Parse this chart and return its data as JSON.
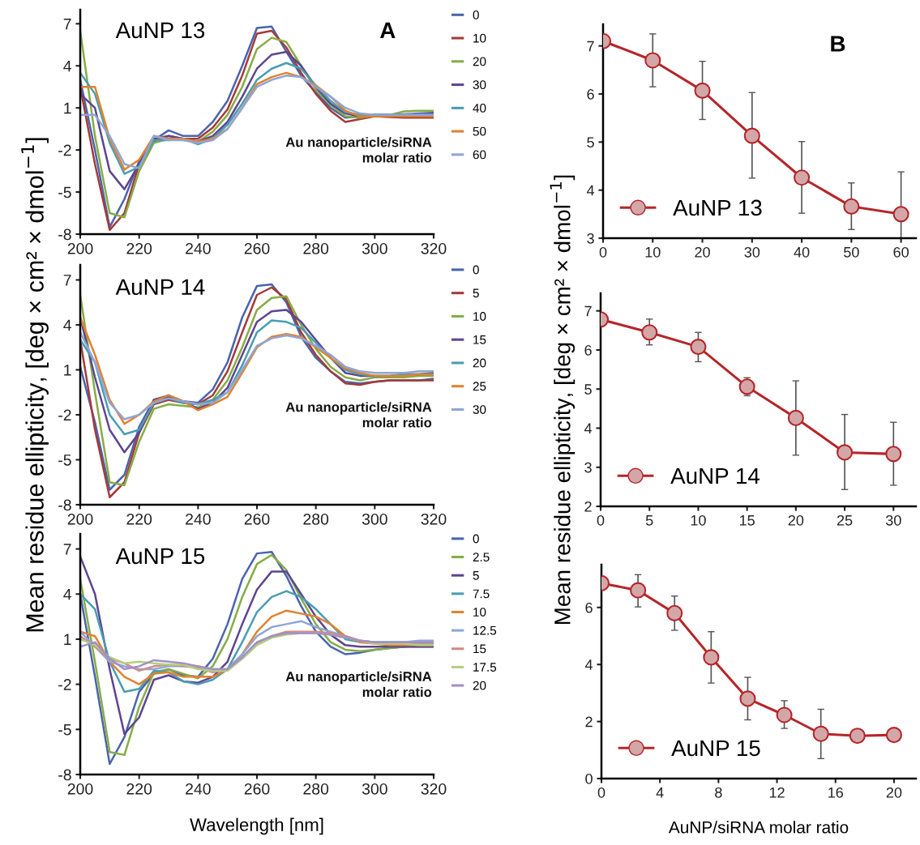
{
  "chart_data": [
    {
      "type": "line",
      "title": "AuNP 13",
      "annotations": [
        "A",
        "Au nanoparticle/siRNA\nmolar ratio"
      ],
      "legend": "right",
      "xlim": [
        200,
        320
      ],
      "xticks": [
        200,
        220,
        240,
        260,
        280,
        300,
        320
      ],
      "ylim": [
        -8,
        8
      ],
      "yticks": [
        -8,
        -5,
        -2,
        1,
        4,
        7
      ],
      "x": [
        200,
        205,
        210,
        215,
        220,
        225,
        230,
        235,
        240,
        245,
        250,
        255,
        260,
        265,
        270,
        275,
        280,
        285,
        290,
        295,
        300,
        305,
        310,
        315,
        320
      ],
      "series": [
        {
          "name": "0",
          "color": "#4a64ad",
          "values": [
            3.0,
            -2.0,
            -7.5,
            -5.5,
            -2.8,
            -1.3,
            -0.6,
            -1.0,
            -1.0,
            0.0,
            1.5,
            4.0,
            6.7,
            6.8,
            5.0,
            3.3,
            2.1,
            1.0,
            0.3,
            0.4,
            0.5,
            0.5,
            0.55,
            0.6,
            0.65
          ]
        },
        {
          "name": "10",
          "color": "#a33b3a",
          "values": [
            2.5,
            -3.0,
            -7.7,
            -6.5,
            -3.0,
            -1.4,
            -1.0,
            -1.2,
            -1.2,
            -0.4,
            0.9,
            3.3,
            6.3,
            6.5,
            5.3,
            3.5,
            2.0,
            0.8,
            0.0,
            0.2,
            0.4,
            0.35,
            0.3,
            0.3,
            0.3
          ]
        },
        {
          "name": "20",
          "color": "#86ad45",
          "values": [
            6.5,
            -1.0,
            -6.5,
            -6.8,
            -3.5,
            -1.5,
            -1.2,
            -1.3,
            -1.4,
            -0.7,
            0.5,
            2.5,
            5.2,
            6.0,
            5.7,
            4.0,
            2.3,
            1.2,
            0.4,
            0.3,
            0.45,
            0.5,
            0.75,
            0.8,
            0.8
          ]
        },
        {
          "name": "30",
          "color": "#5e4590",
          "values": [
            2.0,
            1.0,
            -3.5,
            -4.8,
            -3.0,
            -1.2,
            -1.0,
            -1.2,
            -1.4,
            -1.0,
            0.0,
            1.8,
            3.8,
            4.8,
            5.0,
            4.0,
            2.5,
            1.3,
            0.6,
            0.4,
            0.5,
            0.5,
            0.5,
            0.5,
            0.6
          ]
        },
        {
          "name": "40",
          "color": "#4a9db3",
          "values": [
            3.5,
            2.0,
            -1.5,
            -3.7,
            -3.2,
            -1.3,
            -1.3,
            -1.2,
            -1.6,
            -1.2,
            -0.2,
            1.3,
            3.0,
            3.8,
            4.2,
            3.8,
            2.6,
            1.5,
            0.7,
            0.5,
            0.5,
            0.5,
            0.5,
            0.5,
            0.5
          ]
        },
        {
          "name": "50",
          "color": "#e0832f",
          "values": [
            2.5,
            2.5,
            -1.2,
            -3.4,
            -2.7,
            -1.0,
            -1.2,
            -1.2,
            -1.4,
            -1.2,
            -0.5,
            1.0,
            2.7,
            3.2,
            3.5,
            3.2,
            2.6,
            1.8,
            0.8,
            0.4,
            0.4,
            0.4,
            0.4,
            0.4,
            0.4
          ]
        },
        {
          "name": "60",
          "color": "#8fa6d6",
          "values": [
            0.5,
            0.5,
            -1.0,
            -3.0,
            -3.3,
            -1.0,
            -1.3,
            -1.3,
            -1.5,
            -1.3,
            -0.5,
            1.0,
            2.5,
            3.0,
            3.3,
            3.2,
            2.5,
            1.8,
            1.0,
            0.6,
            0.5,
            0.5,
            0.5,
            0.5,
            0.5
          ]
        }
      ]
    },
    {
      "type": "line",
      "annotations": [
        "B"
      ],
      "legend": "bottom left",
      "marker": "circle",
      "xlim": [
        0,
        63
      ],
      "xticks": [
        0,
        10,
        20,
        30,
        40,
        50,
        60
      ],
      "ylim": [
        3,
        7.45
      ],
      "yticks": [
        3,
        4,
        5,
        6,
        7
      ],
      "x": [
        0,
        10,
        20,
        30,
        40,
        50,
        60
      ],
      "series": [
        {
          "name": "AuNP 13",
          "color": "#b5262a",
          "values": [
            7.1,
            6.7,
            6.07,
            5.13,
            4.26,
            3.66,
            3.5
          ],
          "errors": [
            null,
            [
              6.15,
              7.25
            ],
            [
              5.47,
              6.68
            ],
            [
              4.25,
              6.03
            ],
            [
              3.52,
              5.01
            ],
            [
              3.18,
              4.15
            ],
            [
              3.0,
              4.38
            ]
          ]
        }
      ]
    },
    {
      "type": "line",
      "title": "AuNP 14",
      "ylabel": "Mean residue ellipticity, [deg × cm² × dmol$^{−1}$]",
      "annotations": [
        "Au nanoparticle/siRNA\nmolar ratio"
      ],
      "legend": "right",
      "xlim": [
        200,
        320
      ],
      "xticks": [
        200,
        220,
        240,
        260,
        280,
        300,
        320
      ],
      "ylim": [
        -8,
        8
      ],
      "yticks": [
        -8,
        -5,
        -2,
        1,
        4,
        7
      ],
      "x": [
        200,
        205,
        210,
        215,
        220,
        225,
        230,
        235,
        240,
        245,
        250,
        255,
        260,
        265,
        270,
        275,
        280,
        285,
        290,
        295,
        300,
        305,
        310,
        315,
        320
      ],
      "series": [
        {
          "name": "0",
          "color": "#4a64ad",
          "values": [
            1.2,
            -2.5,
            -7.0,
            -6.0,
            -2.8,
            -1.0,
            -0.7,
            -1.1,
            -1.2,
            -0.3,
            1.5,
            4.5,
            6.6,
            6.7,
            5.5,
            3.2,
            1.8,
            0.9,
            0.2,
            0.1,
            0.2,
            0.3,
            0.3,
            0.3,
            0.4
          ]
        },
        {
          "name": "5",
          "color": "#a33b3a",
          "values": [
            3.0,
            -3.0,
            -7.5,
            -6.5,
            -3.2,
            -1.3,
            -1.0,
            -1.2,
            -1.3,
            -0.7,
            0.9,
            3.5,
            6.0,
            6.5,
            5.7,
            3.5,
            2.0,
            0.9,
            0.1,
            0.0,
            0.2,
            0.3,
            0.3,
            0.3,
            0.3
          ]
        },
        {
          "name": "10",
          "color": "#86ad45",
          "values": [
            6.0,
            -0.5,
            -6.5,
            -6.7,
            -3.8,
            -1.6,
            -1.3,
            -1.4,
            -1.5,
            -1.0,
            0.3,
            2.5,
            5.0,
            5.8,
            5.9,
            4.0,
            2.4,
            1.2,
            0.5,
            0.3,
            0.5,
            0.5,
            0.5,
            0.6,
            0.6
          ]
        },
        {
          "name": "15",
          "color": "#5e4590",
          "values": [
            4.5,
            0.5,
            -3.0,
            -4.5,
            -3.2,
            -1.0,
            -0.8,
            -1.1,
            -1.6,
            -1.2,
            -0.2,
            2.0,
            4.2,
            4.9,
            5.0,
            4.2,
            3.0,
            1.8,
            0.8,
            0.6,
            0.6,
            0.6,
            0.7,
            0.7,
            0.8
          ]
        },
        {
          "name": "20",
          "color": "#4a9db3",
          "values": [
            3.0,
            1.5,
            -2.0,
            -3.3,
            -3.0,
            -1.2,
            -0.9,
            -1.2,
            -1.3,
            -1.0,
            -0.5,
            1.3,
            3.5,
            4.3,
            4.2,
            3.8,
            2.8,
            1.8,
            1.0,
            0.7,
            0.6,
            0.6,
            0.7,
            0.7,
            0.7
          ]
        },
        {
          "name": "25",
          "color": "#e0832f",
          "values": [
            4.5,
            2.0,
            -1.0,
            -2.6,
            -2.0,
            -1.1,
            -0.7,
            -1.1,
            -1.7,
            -1.3,
            -0.8,
            0.8,
            2.5,
            3.2,
            3.4,
            3.2,
            2.5,
            1.8,
            1.1,
            0.8,
            0.6,
            0.6,
            0.6,
            0.7,
            0.7
          ]
        },
        {
          "name": "30",
          "color": "#8fa6d6",
          "values": [
            3.5,
            1.5,
            -1.2,
            -2.3,
            -2.0,
            -1.2,
            -0.9,
            -1.1,
            -1.3,
            -1.2,
            -0.5,
            1.0,
            2.6,
            3.1,
            3.3,
            3.1,
            2.6,
            2.0,
            1.2,
            0.9,
            0.8,
            0.8,
            0.8,
            0.9,
            0.9
          ]
        }
      ]
    },
    {
      "type": "line",
      "ylabel": "Mean residue ellipticity, [deg × cm² × dmol$^{−1}$]",
      "legend": "bottom left",
      "marker": "circle",
      "xlim": [
        0,
        32.3
      ],
      "xticks": [
        0,
        5,
        10,
        15,
        20,
        25,
        30
      ],
      "ylim": [
        2,
        7.45
      ],
      "yticks": [
        2,
        3,
        4,
        5,
        6,
        7
      ],
      "x": [
        0,
        5,
        10,
        15,
        20,
        25,
        30
      ],
      "series": [
        {
          "name": "AuNP 14",
          "color": "#b5262a",
          "values": [
            6.78,
            6.45,
            6.08,
            5.06,
            4.26,
            3.38,
            3.34
          ],
          "errors": [
            null,
            [
              6.13,
              6.79
            ],
            [
              5.7,
              6.45
            ],
            [
              4.83,
              5.29
            ],
            [
              3.31,
              5.21
            ],
            [
              2.43,
              4.35
            ],
            [
              2.54,
              4.15
            ]
          ]
        }
      ]
    },
    {
      "type": "line",
      "title": "AuNP 15",
      "xlabel": "Wavelength [nm]",
      "annotations": [
        "Au nanoparticle/siRNA\nmolar ratio"
      ],
      "legend": "right",
      "xlim": [
        200,
        320
      ],
      "xticks": [
        200,
        220,
        240,
        260,
        280,
        300,
        320
      ],
      "ylim": [
        -8,
        8
      ],
      "yticks": [
        -8,
        -5,
        -2,
        1,
        4,
        7
      ],
      "x": [
        200,
        205,
        210,
        215,
        220,
        225,
        230,
        235,
        240,
        245,
        250,
        255,
        260,
        265,
        270,
        275,
        280,
        285,
        290,
        295,
        300,
        305,
        310,
        315,
        320
      ],
      "series": [
        {
          "name": "0",
          "color": "#4a64ad",
          "values": [
            4.0,
            -1.5,
            -7.3,
            -5.5,
            -2.5,
            -1.3,
            -1.0,
            -1.4,
            -1.5,
            -0.3,
            2.0,
            5.0,
            6.7,
            6.8,
            5.2,
            3.2,
            1.5,
            0.5,
            0.0,
            0.1,
            0.3,
            0.4,
            0.5,
            0.6,
            0.6
          ]
        },
        {
          "name": "2.5",
          "color": "#86ad45",
          "values": [
            5.0,
            -0.5,
            -6.5,
            -6.7,
            -3.5,
            -1.2,
            -1.0,
            -1.3,
            -1.6,
            -0.8,
            1.0,
            3.8,
            6.0,
            6.6,
            5.6,
            3.7,
            2.0,
            0.8,
            0.3,
            0.2,
            0.3,
            0.4,
            0.5,
            0.5,
            0.5
          ]
        },
        {
          "name": "5",
          "color": "#5e4590",
          "values": [
            6.5,
            4.0,
            -1.0,
            -5.3,
            -4.2,
            -1.7,
            -1.4,
            -1.8,
            -1.9,
            -1.5,
            -0.5,
            2.0,
            4.3,
            5.5,
            5.5,
            4.0,
            2.5,
            1.3,
            0.6,
            0.5,
            0.5,
            0.5,
            0.5,
            0.5,
            0.5
          ]
        },
        {
          "name": "7.5",
          "color": "#4a9db3",
          "values": [
            4.0,
            3.0,
            -0.5,
            -2.5,
            -2.3,
            -1.1,
            -1.2,
            -1.8,
            -2.0,
            -1.7,
            -1.0,
            0.8,
            2.8,
            3.8,
            4.2,
            3.8,
            3.0,
            2.0,
            1.0,
            0.8,
            0.8,
            0.8,
            0.8,
            0.8,
            0.8
          ]
        },
        {
          "name": "10",
          "color": "#e0832f",
          "values": [
            1.5,
            1.2,
            -0.5,
            -1.5,
            -2.0,
            -1.3,
            -1.2,
            -1.5,
            -1.5,
            -1.5,
            -1.0,
            0.0,
            1.5,
            2.5,
            2.9,
            2.7,
            2.5,
            2.0,
            1.2,
            0.8,
            0.7,
            0.6,
            0.6,
            0.6,
            0.6
          ]
        },
        {
          "name": "12.5",
          "color": "#8fa6d6",
          "values": [
            1.5,
            0.5,
            -0.5,
            -0.8,
            -1.0,
            -1.0,
            -0.8,
            -0.8,
            -0.8,
            -1.0,
            -1.0,
            0.0,
            1.2,
            1.8,
            2.0,
            2.2,
            1.8,
            1.5,
            1.2,
            0.9,
            0.8,
            0.8,
            0.8,
            0.9,
            0.9
          ]
        },
        {
          "name": "15",
          "color": "#d08a88",
          "values": [
            1.2,
            0.5,
            -0.3,
            -0.6,
            -1.1,
            -0.8,
            -0.7,
            -0.8,
            -0.9,
            -1.2,
            -1.0,
            -0.3,
            0.7,
            1.2,
            1.5,
            1.5,
            1.5,
            1.4,
            1.2,
            0.9,
            0.8,
            0.7,
            0.7,
            0.7,
            0.7
          ]
        },
        {
          "name": "17.5",
          "color": "#b2d07e",
          "values": [
            1.0,
            0.6,
            -0.2,
            -0.6,
            -0.5,
            -0.6,
            -0.7,
            -0.7,
            -1.0,
            -1.1,
            -1.1,
            -0.3,
            0.6,
            1.1,
            1.3,
            1.4,
            1.4,
            1.3,
            1.1,
            0.9,
            0.7,
            0.7,
            0.7,
            0.6,
            0.6
          ]
        },
        {
          "name": "20",
          "color": "#a190c6",
          "values": [
            0.5,
            0.8,
            -0.3,
            -1.0,
            -0.8,
            -0.4,
            -0.5,
            -0.6,
            -0.8,
            -1.0,
            -1.0,
            -0.2,
            0.8,
            1.2,
            1.4,
            1.4,
            1.4,
            1.3,
            1.1,
            0.9,
            0.8,
            0.8,
            0.8,
            0.8,
            0.8
          ]
        }
      ]
    },
    {
      "type": "line",
      "xlabel": "AuNP/siRNA molar ratio",
      "legend": "bottom left",
      "marker": "circle",
      "xlim": [
        0,
        21.5
      ],
      "xticks": [
        0,
        4,
        8,
        12,
        16,
        20
      ],
      "ylim": [
        0,
        7.5
      ],
      "yticks": [
        0,
        2,
        4,
        6
      ],
      "x": [
        0,
        2.5,
        5,
        7.5,
        10,
        12.5,
        15,
        17.5,
        20
      ],
      "series": [
        {
          "name": "AuNP 15",
          "color": "#b5262a",
          "values": [
            6.85,
            6.6,
            5.8,
            4.25,
            2.8,
            2.23,
            1.57,
            1.5,
            1.53
          ],
          "errors": [
            null,
            [
              6.02,
              7.15
            ],
            [
              5.2,
              6.4
            ],
            [
              3.35,
              5.15
            ],
            [
              2.06,
              3.55
            ],
            [
              1.76,
              2.73
            ],
            [
              0.7,
              2.43
            ],
            null,
            null
          ]
        }
      ]
    }
  ]
}
